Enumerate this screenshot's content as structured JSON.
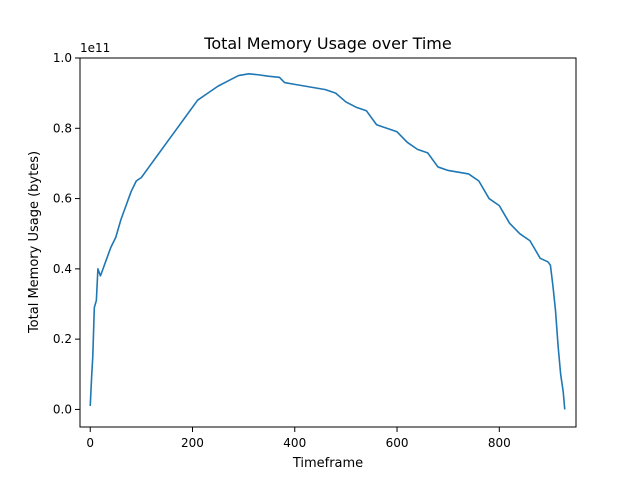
{
  "chart_data": {
    "type": "line",
    "title": "Total Memory Usage over Time",
    "xlabel": "Timeframe",
    "ylabel": "Total Memory Usage (bytes)",
    "y_offset_label": "1e11",
    "xlim": [
      -20,
      950
    ],
    "ylim": [
      -0.05,
      1.0
    ],
    "y_scale": "1e11 bytes",
    "x_ticks": [
      0,
      200,
      400,
      600,
      800
    ],
    "x_tick_labels": [
      "0",
      "200",
      "400",
      "600",
      "800"
    ],
    "y_ticks": [
      0.0,
      0.2,
      0.4,
      0.6,
      0.8,
      1.0
    ],
    "y_tick_labels": [
      "0.0",
      "0.2",
      "0.4",
      "0.6",
      "0.8",
      "1.0"
    ],
    "grid": false,
    "series": [
      {
        "color": "#1f77b4",
        "x": [
          0,
          3,
          5,
          8,
          12,
          15,
          20,
          25,
          30,
          40,
          50,
          60,
          70,
          80,
          90,
          100,
          115,
          130,
          150,
          170,
          190,
          210,
          230,
          250,
          270,
          290,
          310,
          330,
          350,
          370,
          380,
          400,
          420,
          440,
          460,
          480,
          500,
          520,
          540,
          560,
          580,
          600,
          620,
          640,
          660,
          680,
          700,
          720,
          740,
          760,
          780,
          800,
          820,
          840,
          860,
          880,
          895,
          900,
          905,
          910,
          915,
          920,
          925,
          928
        ],
        "y": [
          0.01,
          0.1,
          0.15,
          0.29,
          0.31,
          0.4,
          0.38,
          0.4,
          0.42,
          0.46,
          0.49,
          0.54,
          0.58,
          0.62,
          0.65,
          0.66,
          0.69,
          0.72,
          0.76,
          0.8,
          0.84,
          0.88,
          0.9,
          0.92,
          0.935,
          0.95,
          0.955,
          0.952,
          0.948,
          0.945,
          0.93,
          0.925,
          0.92,
          0.915,
          0.91,
          0.9,
          0.875,
          0.86,
          0.85,
          0.81,
          0.8,
          0.79,
          0.76,
          0.74,
          0.73,
          0.69,
          0.68,
          0.675,
          0.67,
          0.65,
          0.6,
          0.58,
          0.53,
          0.5,
          0.48,
          0.43,
          0.42,
          0.41,
          0.35,
          0.28,
          0.18,
          0.1,
          0.05,
          0.0
        ]
      }
    ]
  }
}
